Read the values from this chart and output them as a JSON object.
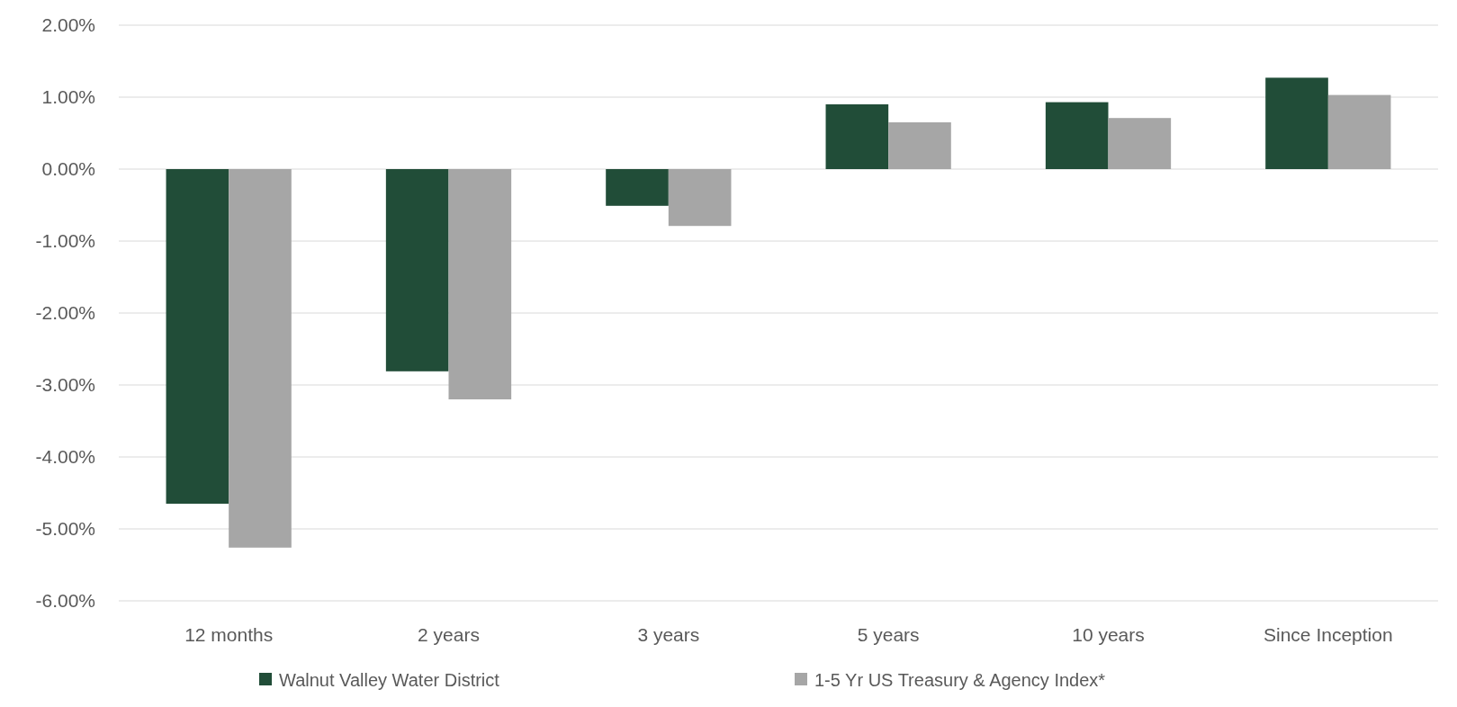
{
  "chart_data": {
    "type": "bar",
    "categories": [
      "12 months",
      "2 years",
      "3 years",
      "5 years",
      "10 years",
      "Since Inception"
    ],
    "series": [
      {
        "name": "Walnut Valley Water District",
        "color": "#214d38",
        "values": [
          -4.65,
          -2.81,
          -0.51,
          0.9,
          0.93,
          1.27
        ]
      },
      {
        "name": "1-5 Yr US Treasury & Agency Index*",
        "color": "#a6a6a6",
        "values": [
          -5.26,
          -3.2,
          -0.79,
          0.65,
          0.71,
          1.03
        ]
      }
    ],
    "ylim": [
      -6,
      2
    ],
    "yticks": [
      {
        "value": -6,
        "label": "-6.00%"
      },
      {
        "value": -5,
        "label": "-5.00%"
      },
      {
        "value": -4,
        "label": "-4.00%"
      },
      {
        "value": -3,
        "label": "-3.00%"
      },
      {
        "value": -2,
        "label": "-2.00%"
      },
      {
        "value": -1,
        "label": "-1.00%"
      },
      {
        "value": 0,
        "label": "0.00%"
      },
      {
        "value": 1,
        "label": "1.00%"
      },
      {
        "value": 2,
        "label": "2.00%"
      }
    ],
    "grid": "y",
    "legend": "bottom"
  }
}
